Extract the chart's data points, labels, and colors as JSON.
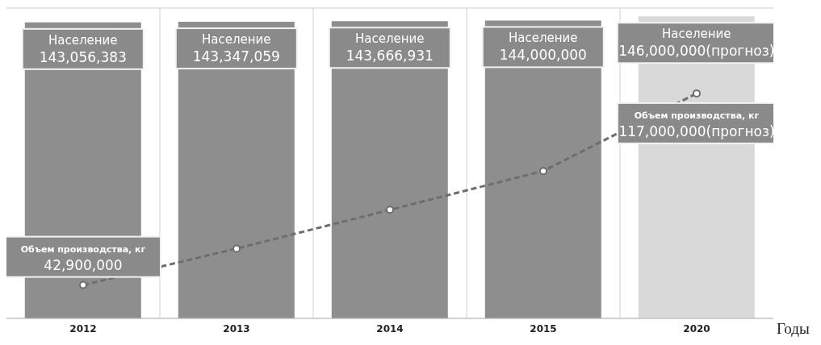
{
  "chart_data": {
    "type": "bar",
    "xlabel": "Годы",
    "categories": [
      "2012",
      "2013",
      "2014",
      "2015",
      "2020"
    ],
    "series": [
      {
        "name": "Население",
        "colors": [
          "#8e8e8e",
          "#8e8e8e",
          "#8e8e8e",
          "#8e8e8e",
          "#d9d9d9"
        ],
        "values": [
          143056383,
          143347059,
          143666931,
          144000000,
          146000000
        ],
        "value_labels": [
          "143,056,383",
          "143,347,059",
          "143,666,931",
          "144,000,000",
          "146,000,000(прогноз)"
        ]
      },
      {
        "name": "Объем производства, кг",
        "type": "line",
        "axis": "y2",
        "color": "#6e6e6e",
        "line_style": "dashed",
        "marker": "circle",
        "values": [
          42900000,
          57000000,
          72000000,
          87000000,
          117000000
        ],
        "value_labels": [
          "42,900,000",
          null,
          null,
          null,
          "117,000,000(прогноз)"
        ]
      }
    ],
    "ylim": [
      0,
      150000000
    ],
    "y2lim": [
      30000000,
      150000000
    ],
    "grid": true,
    "tick_labels": "x"
  }
}
